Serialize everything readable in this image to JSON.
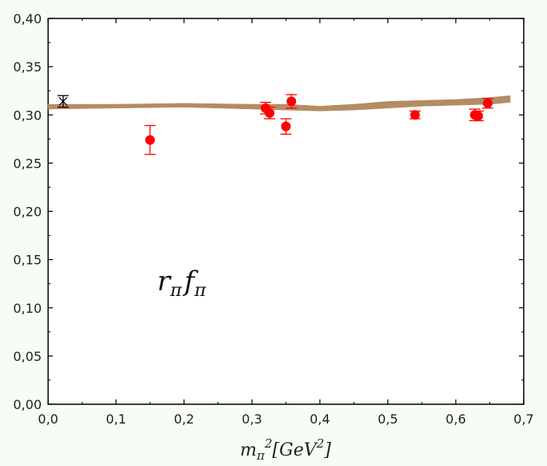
{
  "chart_data": {
    "type": "scatter",
    "title": "",
    "xlim": [
      0.0,
      0.7
    ],
    "ylim": [
      0.0,
      0.4
    ],
    "x_ticks": [
      "0,0",
      "0,1",
      "0,2",
      "0,3",
      "0,4",
      "0,5",
      "0,6",
      "0,7"
    ],
    "y_ticks": [
      "0,00",
      "0,05",
      "0,10",
      "0,15",
      "0,20",
      "0,25",
      "0,30",
      "0,35",
      "0,40"
    ],
    "xlabel": {
      "base": "m",
      "sub": "π",
      "sup": "2",
      "bracket_open": "[",
      "unit": "GeV",
      "unit_sup": "2",
      "bracket_close": "]"
    },
    "annotation": {
      "r": "r",
      "r_sub": "π",
      "f": "f",
      "f_sub": "π"
    },
    "physical_point": {
      "x": 0.022,
      "y": 0.314,
      "err": 0.006,
      "marker": "asterisk",
      "color": "#000000"
    },
    "series": [
      {
        "marker": "circle",
        "color": "#ff0000",
        "points": [
          {
            "x": 0.15,
            "y": 0.274,
            "err": 0.015
          },
          {
            "x": 0.32,
            "y": 0.307,
            "err": 0.006
          },
          {
            "x": 0.326,
            "y": 0.302,
            "err": 0.006
          },
          {
            "x": 0.35,
            "y": 0.288,
            "err": 0.008
          },
          {
            "x": 0.358,
            "y": 0.314,
            "err": 0.007
          },
          {
            "x": 0.54,
            "y": 0.3,
            "err": 0.004
          },
          {
            "x": 0.628,
            "y": 0.3,
            "err": 0.006
          },
          {
            "x": 0.633,
            "y": 0.299,
            "err": 0.005
          },
          {
            "x": 0.647,
            "y": 0.312,
            "err": 0.005
          }
        ]
      }
    ],
    "band": {
      "color": "#b48c62",
      "x": [
        0.0,
        0.1,
        0.2,
        0.3,
        0.35,
        0.4,
        0.45,
        0.5,
        0.55,
        0.6,
        0.65,
        0.68
      ],
      "lower": [
        0.306,
        0.307,
        0.308,
        0.306,
        0.305,
        0.304,
        0.305,
        0.307,
        0.309,
        0.31,
        0.311,
        0.313
      ],
      "upper": [
        0.311,
        0.311,
        0.312,
        0.311,
        0.311,
        0.309,
        0.311,
        0.314,
        0.315,
        0.316,
        0.318,
        0.32
      ]
    }
  }
}
